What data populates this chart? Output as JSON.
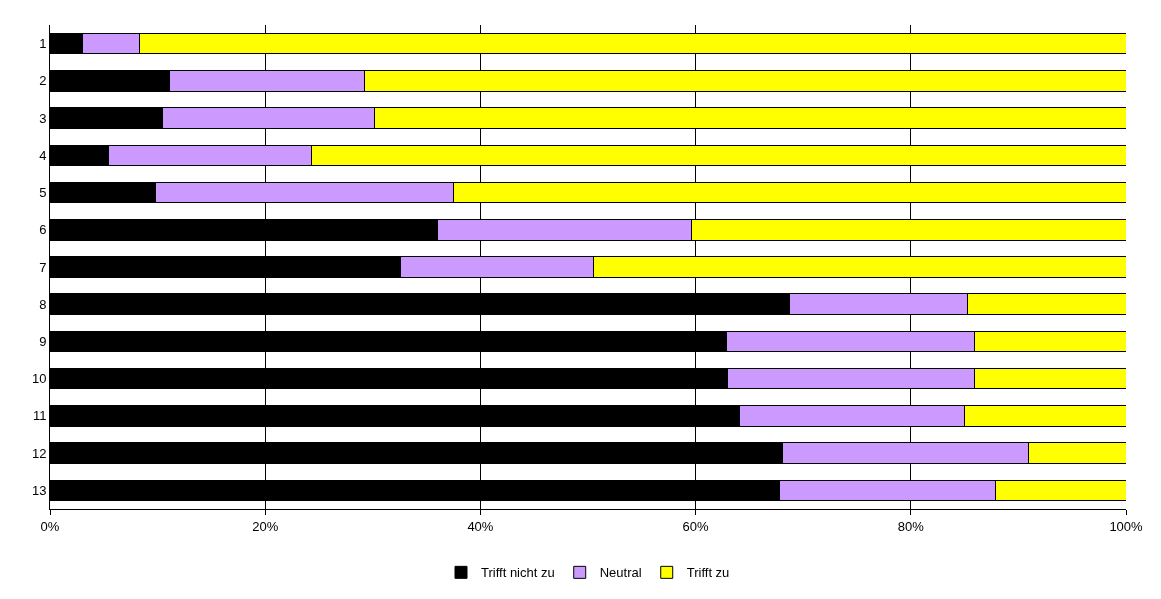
{
  "chart_data": {
    "type": "bar",
    "orientation": "horizontal",
    "stacked": true,
    "categories": [
      "1",
      "2",
      "3",
      "4",
      "5",
      "6",
      "7",
      "8",
      "9",
      "10",
      "11",
      "12",
      "13"
    ],
    "series": [
      {
        "name": "Trifft nicht zu",
        "color": "#000000",
        "values": [
          3.0,
          11.1,
          10.5,
          5.4,
          9.8,
          36.0,
          32.6,
          68.7,
          62.9,
          63.0,
          64.1,
          68.1,
          67.8
        ]
      },
      {
        "name": "Neutral",
        "color": "#cc99ff",
        "values": [
          5.3,
          18.1,
          19.7,
          18.9,
          27.7,
          23.6,
          17.9,
          16.6,
          23.0,
          22.9,
          20.9,
          22.8,
          20.1
        ]
      },
      {
        "name": "Trifft zu",
        "color": "#ffff00",
        "values": [
          91.7,
          70.8,
          69.8,
          75.7,
          62.5,
          40.4,
          49.5,
          14.7,
          14.1,
          14.1,
          15.0,
          9.1,
          12.1
        ]
      }
    ],
    "xlim": [
      0,
      100
    ],
    "xticks": [
      {
        "value": 0,
        "label": "0%"
      },
      {
        "value": 20,
        "label": "20%"
      },
      {
        "value": 40,
        "label": "40%"
      },
      {
        "value": 60,
        "label": "60%"
      },
      {
        "value": 80,
        "label": "80%"
      },
      {
        "value": 100,
        "label": "100%"
      }
    ],
    "grid": "x",
    "legend": "bottom"
  }
}
